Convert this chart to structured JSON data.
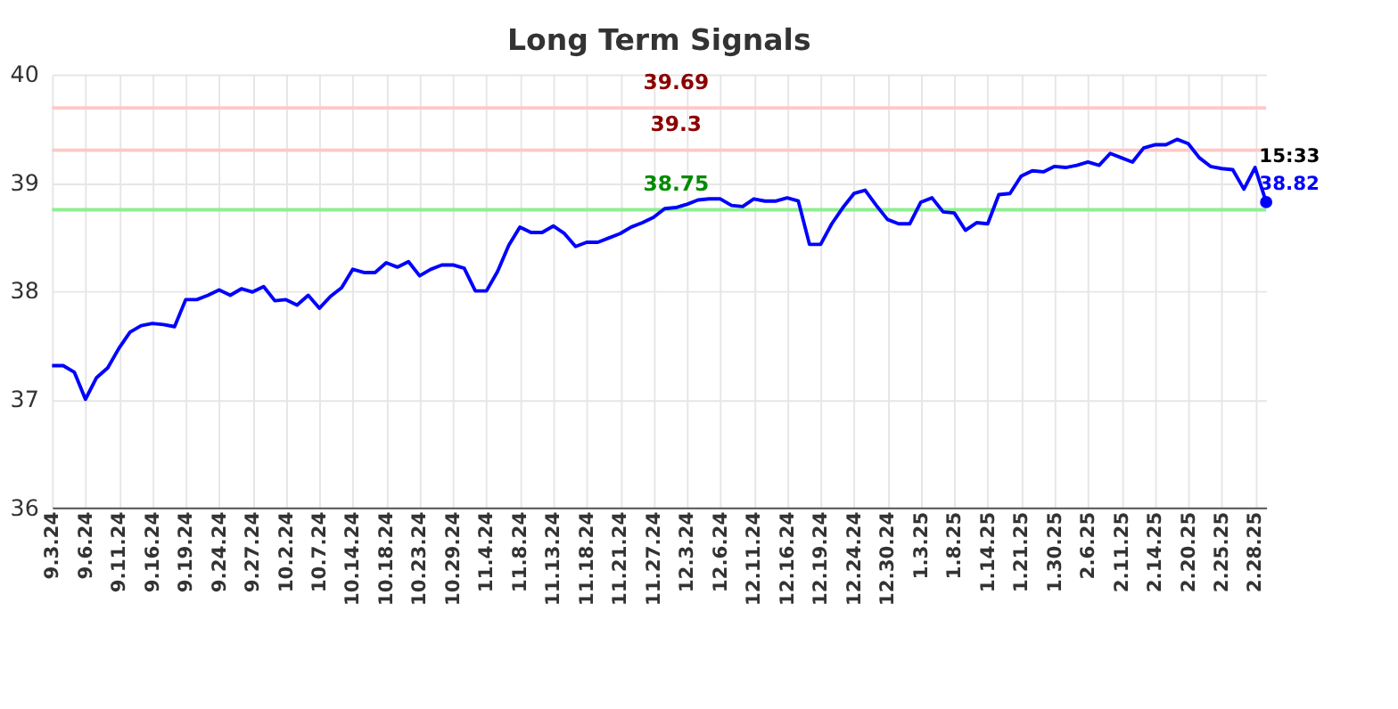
{
  "chart_data": {
    "type": "line",
    "title": "Long Term Signals",
    "categories": [
      "9.3.24",
      null,
      null,
      "9.6.24",
      null,
      null,
      "9.11.24",
      null,
      null,
      "9.16.24",
      null,
      null,
      "9.19.24",
      null,
      null,
      "9.24.24",
      null,
      null,
      "9.27.24",
      null,
      null,
      "10.2.24",
      null,
      null,
      "10.7.24",
      null,
      null,
      "10.14.24",
      null,
      null,
      "10.18.24",
      null,
      null,
      "10.23.24",
      null,
      null,
      "10.29.24",
      null,
      null,
      "11.4.24",
      null,
      null,
      "11.8.24",
      null,
      null,
      "11.13.24",
      null,
      null,
      "11.18.24",
      null,
      null,
      "11.21.24",
      null,
      null,
      "11.27.24",
      null,
      null,
      "12.3.24",
      null,
      null,
      "12.6.24",
      null,
      null,
      "12.11.24",
      null,
      null,
      "12.16.24",
      null,
      null,
      "12.19.24",
      null,
      null,
      "12.24.24",
      null,
      null,
      "12.30.24",
      null,
      null,
      "1.3.25",
      null,
      null,
      "1.8.25",
      null,
      null,
      "1.14.25",
      null,
      null,
      "1.21.25",
      null,
      null,
      "1.30.25",
      null,
      null,
      "2.6.25",
      null,
      null,
      "2.11.25",
      null,
      null,
      "2.14.25",
      null,
      null,
      "2.20.25",
      null,
      null,
      "2.25.25",
      null,
      null,
      "2.28.25",
      null
    ],
    "series": [
      {
        "color": "#0000ff",
        "values": [
          37.31,
          37.31,
          37.25,
          37.0,
          37.2,
          37.29,
          37.47,
          37.62,
          37.68,
          37.7,
          37.69,
          37.67,
          37.92,
          37.92,
          37.96,
          38.01,
          37.96,
          38.02,
          37.99,
          38.04,
          37.91,
          37.92,
          37.87,
          37.96,
          37.84,
          37.95,
          38.03,
          38.2,
          38.17,
          38.17,
          38.26,
          38.22,
          38.27,
          38.14,
          38.2,
          38.24,
          38.24,
          38.21,
          38.0,
          38.0,
          38.18,
          38.42,
          38.59,
          38.54,
          38.54,
          38.6,
          38.53,
          38.41,
          38.45,
          38.45,
          38.49,
          38.53,
          38.59,
          38.63,
          38.68,
          38.76,
          38.77,
          38.8,
          38.84,
          38.85,
          38.85,
          38.79,
          38.78,
          38.85,
          38.83,
          38.83,
          38.86,
          38.83,
          38.43,
          38.43,
          38.62,
          38.77,
          38.9,
          38.93,
          38.79,
          38.66,
          38.62,
          38.62,
          38.82,
          38.86,
          38.73,
          38.72,
          38.56,
          38.63,
          38.62,
          38.89,
          38.9,
          39.06,
          39.11,
          39.1,
          39.15,
          39.14,
          39.16,
          39.19,
          39.16,
          39.27,
          39.23,
          39.19,
          39.32,
          39.35,
          39.35,
          39.4,
          39.36,
          39.23,
          39.15,
          39.13,
          39.12,
          38.94,
          39.14,
          38.82
        ],
        "value_labels": [
          null,
          null,
          null,
          null,
          null,
          null,
          null,
          null,
          null,
          null,
          null,
          null,
          null,
          null,
          null,
          null,
          null,
          null,
          null,
          null,
          null,
          null,
          null,
          null,
          null,
          null,
          null,
          null,
          null,
          null,
          null,
          null,
          null,
          null,
          null,
          null,
          null,
          null,
          null,
          null,
          null,
          null,
          null,
          null,
          null,
          null,
          null,
          null,
          null,
          null,
          null,
          null,
          null,
          null,
          null,
          null,
          null,
          null,
          null,
          null,
          null,
          null,
          null,
          null,
          null,
          null,
          null,
          null,
          null,
          null,
          null,
          null,
          null,
          null,
          null,
          null,
          null,
          null,
          null,
          null,
          null,
          null,
          null,
          null,
          null,
          null,
          null,
          null,
          null,
          null,
          null,
          null,
          null,
          null,
          null,
          null,
          null,
          null,
          null,
          null,
          null,
          null,
          null,
          null,
          null,
          null,
          null,
          null,
          null,
          "38.82"
        ]
      }
    ],
    "ylim": [
      36,
      40
    ],
    "yticks": [
      36,
      37,
      38,
      39,
      40
    ],
    "grid": true,
    "ref_lines": [
      {
        "axis": "y",
        "value": 39.69,
        "label": "39.69",
        "color": "#ffc8c8"
      },
      {
        "axis": "y",
        "value": 39.3,
        "label": "39.3",
        "color": "#ffc8c8"
      },
      {
        "axis": "y",
        "value": 38.75,
        "label": "38.75",
        "color": "#90ee90"
      }
    ],
    "annotations": [
      "15:33"
    ]
  }
}
